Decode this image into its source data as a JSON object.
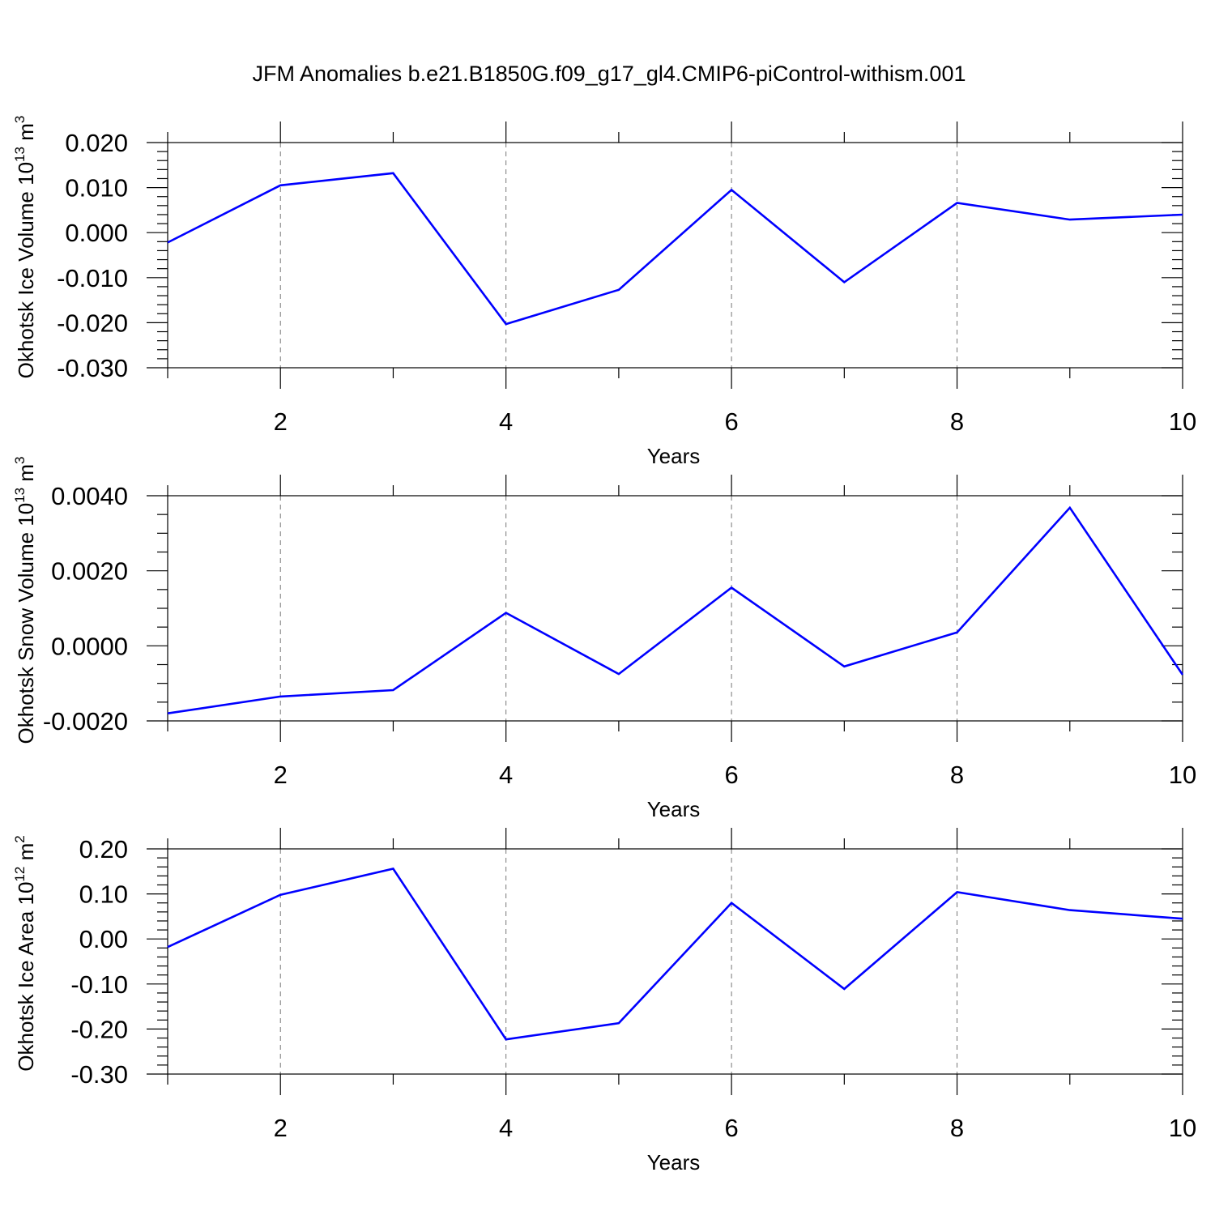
{
  "title": "JFM Anomalies b.e21.B1850G.f09_g17_gl4.CMIP6-piControl-withism.001",
  "colors": {
    "line": "#0000ff",
    "frame": "#000000",
    "grid": "#777777"
  },
  "chart_data": [
    {
      "type": "line",
      "title": "",
      "xlabel": "Years",
      "ylabel": {
        "main": "Okhotsk Ice Volume 10",
        "sup1": "13",
        "mid": " m",
        "sup2": "3"
      },
      "xlim": [
        1,
        10
      ],
      "ylim": [
        -0.03,
        0.02
      ],
      "grid": "x-dashed",
      "x_ticks": [
        2,
        4,
        6,
        8,
        10
      ],
      "x_tick_labels": [
        "2",
        "4",
        "6",
        "8",
        "10"
      ],
      "x_minor": [
        1,
        3,
        5,
        7,
        9
      ],
      "y_ticks": [
        -0.03,
        -0.02,
        -0.01,
        0.0,
        0.01,
        0.02
      ],
      "y_tick_labels": [
        "-0.030",
        "-0.020",
        "-0.010",
        "0.000",
        "0.010",
        "0.020"
      ],
      "y_minor_step": 0.002,
      "x": [
        1,
        2,
        3,
        4,
        5,
        6,
        7,
        8,
        9,
        10
      ],
      "series": [
        {
          "values": [
            -0.0022,
            0.0105,
            0.0132,
            -0.0203,
            -0.0127,
            0.0095,
            -0.011,
            0.0066,
            0.0029,
            0.004
          ]
        }
      ]
    },
    {
      "type": "line",
      "title": "",
      "xlabel": "Years",
      "ylabel": {
        "main": "Okhotsk Snow Volume 10",
        "sup1": "13",
        "mid": " m",
        "sup2": "3"
      },
      "xlim": [
        1,
        10
      ],
      "ylim": [
        -0.002,
        0.004
      ],
      "grid": "x-dashed",
      "x_ticks": [
        2,
        4,
        6,
        8,
        10
      ],
      "x_tick_labels": [
        "2",
        "4",
        "6",
        "8",
        "10"
      ],
      "x_minor": [
        1,
        3,
        5,
        7,
        9
      ],
      "y_ticks": [
        -0.002,
        0.0,
        0.002,
        0.004
      ],
      "y_tick_labels": [
        "-0.0020",
        "0.0000",
        "0.0020",
        "0.0040"
      ],
      "y_minor_step": 0.0005,
      "x": [
        1,
        2,
        3,
        4,
        5,
        6,
        7,
        8,
        9,
        10
      ],
      "series": [
        {
          "values": [
            -0.0018,
            -0.00135,
            -0.00118,
            0.00088,
            -0.00075,
            0.00155,
            -0.00055,
            0.00036,
            0.00368,
            -0.00077
          ]
        }
      ]
    },
    {
      "type": "line",
      "title": "",
      "xlabel": "Years",
      "ylabel": {
        "main": "Okhotsk Ice Area 10",
        "sup1": "12",
        "mid": " m",
        "sup2": "2"
      },
      "xlim": [
        1,
        10
      ],
      "ylim": [
        -0.3,
        0.2
      ],
      "grid": "x-dashed",
      "x_ticks": [
        2,
        4,
        6,
        8,
        10
      ],
      "x_tick_labels": [
        "2",
        "4",
        "6",
        "8",
        "10"
      ],
      "x_minor": [
        1,
        3,
        5,
        7,
        9
      ],
      "y_ticks": [
        -0.3,
        -0.2,
        -0.1,
        0.0,
        0.1,
        0.2
      ],
      "y_tick_labels": [
        "-0.30",
        "-0.20",
        "-0.10",
        "0.00",
        "0.10",
        "0.20"
      ],
      "y_minor_step": 0.02,
      "x": [
        1,
        2,
        3,
        4,
        5,
        6,
        7,
        8,
        9,
        10
      ],
      "series": [
        {
          "values": [
            -0.018,
            0.098,
            0.156,
            -0.223,
            -0.187,
            0.08,
            -0.111,
            0.104,
            0.064,
            0.045
          ]
        }
      ]
    }
  ]
}
